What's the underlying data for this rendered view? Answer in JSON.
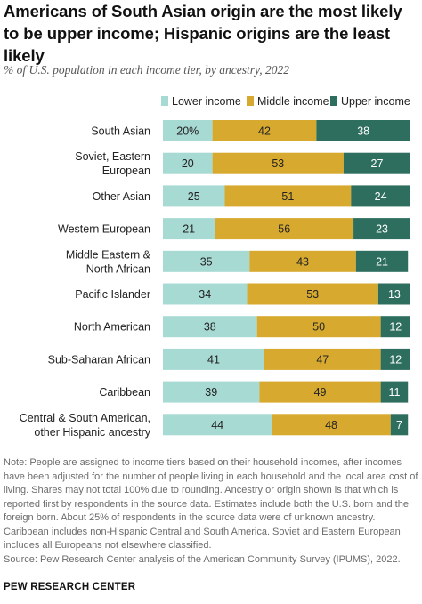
{
  "title": "Americans of South Asian origin are the most likely to be upper income; Hispanic origins are the least likely",
  "subtitle": "% of U.S. population in each income tier, by ancestry, 2022",
  "colors": {
    "lower": "#a8dad4",
    "middle": "#d7aa2f",
    "upper": "#2e6e5e"
  },
  "chart_data": {
    "type": "bar",
    "orientation": "horizontal",
    "stacked": true,
    "categories": [
      "South Asian",
      "Soviet, Eastern European",
      "Other Asian",
      "Western European",
      "Middle Eastern & North African",
      "Pacific Islander",
      "North American",
      "Sub-Saharan African",
      "Caribbean",
      "Central & South American, other Hispanic ancestry"
    ],
    "category_lines": [
      [
        "South Asian"
      ],
      [
        "Soviet, Eastern",
        "European"
      ],
      [
        "Other Asian"
      ],
      [
        "Western European"
      ],
      [
        "Middle Eastern &",
        "North African"
      ],
      [
        "Pacific Islander"
      ],
      [
        "North American"
      ],
      [
        "Sub-Saharan African"
      ],
      [
        "Caribbean"
      ],
      [
        "Central & South American,",
        "other Hispanic ancestry"
      ]
    ],
    "series": [
      {
        "name": "Lower income",
        "values": [
          20,
          20,
          25,
          21,
          35,
          34,
          38,
          41,
          39,
          44
        ]
      },
      {
        "name": "Middle income",
        "values": [
          42,
          53,
          51,
          56,
          43,
          53,
          50,
          47,
          49,
          48
        ]
      },
      {
        "name": "Upper income",
        "values": [
          38,
          27,
          24,
          23,
          21,
          13,
          12,
          12,
          11,
          7
        ]
      }
    ],
    "first_label_suffix": "%",
    "legend_position": "top-right",
    "grid": false
  },
  "note": "Note: People are assigned to income tiers based on their household incomes, after incomes have been adjusted for the number of people living in each household and the local area cost of living. Shares may not total 100% due to rounding. Ancestry or origin shown is that which is reported first by respondents in the source data. Estimates include both the U.S. born and the foreign born. About 25% of respondents in the source data were of unknown ancestry. Caribbean includes non-Hispanic Central and South America. Soviet and Eastern European includes all Europeans not elsewhere classified.",
  "source": "Source: Pew Research Center analysis of the American Community Survey (IPUMS), 2022.",
  "brand": "PEW RESEARCH CENTER"
}
